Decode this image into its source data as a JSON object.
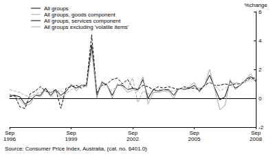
{
  "chart_data": {
    "type": "line",
    "y_label": "%change",
    "source": "Source: Consumer Price Index, Australia, (cat. no. 6401.0)",
    "categories": [
      "Sep 1996",
      null,
      null,
      null,
      null,
      null,
      null,
      null,
      null,
      null,
      null,
      null,
      "Sep 1999",
      null,
      null,
      null,
      null,
      null,
      null,
      null,
      null,
      null,
      null,
      null,
      "Sep 2002",
      null,
      null,
      null,
      null,
      null,
      null,
      null,
      null,
      null,
      null,
      null,
      "Sep 2005",
      null,
      null,
      null,
      null,
      null,
      null,
      null,
      null,
      null,
      null,
      null,
      "Sep 2008"
    ],
    "ylim": [
      -2,
      6
    ],
    "yticks": [
      -2,
      0,
      2,
      4,
      6
    ],
    "grid": false,
    "legend": "top-left",
    "series": [
      {
        "name": "All groups",
        "color": "#000000",
        "line_style": "solid",
        "values": [
          0.2,
          0.2,
          0.1,
          -0.4,
          -0.2,
          0.2,
          0.2,
          0.7,
          0.2,
          0.6,
          0.2,
          0.5,
          0.9,
          0.7,
          0.9,
          0.9,
          3.7,
          0.2,
          1.1,
          0.9,
          0.2,
          0.9,
          0.9,
          0.6,
          0.7,
          0.6,
          1.3,
          0.0,
          0.6,
          0.5,
          0.6,
          0.6,
          0.2,
          0.7,
          0.6,
          0.7,
          0.9,
          0.5,
          0.9,
          1.6,
          0.7,
          -0.1,
          0.1,
          1.2,
          0.7,
          0.9,
          1.3,
          1.5,
          1.2
        ]
      },
      {
        "name": "All groups, goods component",
        "color": "#a6a6a6",
        "line_style": "solid",
        "values": [
          0.3,
          0.1,
          -0.1,
          -0.5,
          -0.4,
          0.2,
          0.1,
          0.6,
          0.1,
          0.5,
          0.0,
          0.4,
          1.0,
          0.5,
          0.9,
          0.8,
          3.4,
          0.0,
          1.2,
          0.9,
          0.0,
          1.0,
          0.8,
          0.4,
          0.6,
          0.5,
          1.5,
          -0.4,
          0.4,
          0.4,
          0.5,
          0.5,
          0.0,
          0.7,
          0.6,
          0.8,
          1.1,
          0.4,
          0.9,
          2.0,
          0.6,
          -0.8,
          -0.5,
          1.3,
          0.6,
          0.9,
          1.3,
          1.7,
          1.1
        ]
      },
      {
        "name": "All groups, services component",
        "color": "#000000",
        "line_style": "dashed",
        "values": [
          0.1,
          0.2,
          -0.6,
          -0.7,
          0.3,
          0.5,
          0.8,
          0.5,
          0.4,
          0.6,
          -0.7,
          0.7,
          0.8,
          0.9,
          0.7,
          1.0,
          4.4,
          0.4,
          0.9,
          1.0,
          1.3,
          1.4,
          1.0,
          1.3,
          0.7,
          0.6,
          0.9,
          0.8,
          0.6,
          0.8,
          0.7,
          0.8,
          0.7,
          0.6,
          0.8,
          0.7,
          0.7,
          0.6,
          0.9,
          1.1,
          0.9,
          0.9,
          1.0,
          0.9,
          1.0,
          1.0,
          1.2,
          1.4,
          1.4
        ]
      },
      {
        "name": "All groups excluding 'volatile items'",
        "color": "#a6a6a6",
        "line_style": "dashed",
        "values": [
          0.6,
          0.5,
          0.4,
          0.2,
          0.1,
          0.3,
          0.4,
          0.5,
          0.4,
          0.5,
          0.5,
          0.3,
          0.6,
          0.7,
          0.8,
          0.8,
          3.2,
          0.6,
          1.0,
          0.8,
          0.5,
          0.9,
          1.0,
          0.6,
          1.4,
          -0.3,
          0.5,
          0.3,
          0.4,
          0.6,
          0.6,
          0.5,
          0.5,
          0.6,
          0.7,
          0.6,
          0.8,
          0.7,
          0.8,
          1.1,
          0.9,
          0.5,
          0.7,
          1.0,
          1.1,
          1.0,
          1.1,
          1.3,
          1.3
        ]
      }
    ]
  }
}
